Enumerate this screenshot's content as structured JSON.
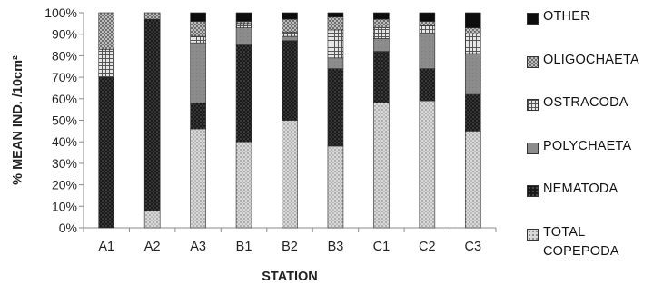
{
  "chart_data": {
    "type": "stacked-bar-100",
    "title": "",
    "xlabel": "STATION",
    "ylabel": "% MEAN IND. /10cm²",
    "ylim": [
      0,
      100
    ],
    "yticks": [
      "0%",
      "10%",
      "20%",
      "30%",
      "40%",
      "50%",
      "60%",
      "70%",
      "80%",
      "90%",
      "100%"
    ],
    "categories": [
      "A1",
      "A2",
      "A3",
      "B1",
      "B2",
      "B3",
      "C1",
      "C2",
      "C3"
    ],
    "series": [
      {
        "name": "TOTAL COPEPODA",
        "values": [
          0,
          8,
          46,
          40,
          50,
          38,
          58,
          59,
          45
        ],
        "pattern": "light-dots"
      },
      {
        "name": "NEMATODA",
        "values": [
          70,
          89,
          12,
          45,
          37,
          36,
          24,
          15,
          17
        ],
        "pattern": "dark-dots"
      },
      {
        "name": "POLYCHAETA",
        "values": [
          0,
          0,
          28,
          8,
          2,
          5,
          6,
          16,
          19
        ],
        "pattern": "gray"
      },
      {
        "name": "OSTRACODA",
        "values": [
          13,
          0,
          3,
          2,
          2,
          13,
          5,
          4,
          9
        ],
        "pattern": "grid"
      },
      {
        "name": "OLIGOCHAETA",
        "values": [
          17,
          3,
          7,
          1,
          6,
          6,
          4,
          2,
          3
        ],
        "pattern": "checker"
      },
      {
        "name": "OTHER",
        "values": [
          0,
          0,
          4,
          4,
          3,
          2,
          3,
          4,
          7
        ],
        "pattern": "black"
      }
    ],
    "legend": {
      "placement": "right",
      "order": [
        "OTHER",
        "OLIGOCHAETA",
        "OSTRACODA",
        "POLYCHAETA",
        "NEMATODA",
        "TOTAL COPEPODA"
      ],
      "labels": [
        {
          "key": "OTHER",
          "lines": [
            "OTHER"
          ]
        },
        {
          "key": "OLIGOCHAETA",
          "lines": [
            "OLIGOCHAETA"
          ]
        },
        {
          "key": "OSTRACODA",
          "lines": [
            "OSTRACODA"
          ]
        },
        {
          "key": "POLYCHAETA",
          "lines": [
            "POLYCHAETA"
          ]
        },
        {
          "key": "NEMATODA",
          "lines": [
            "NEMATODA"
          ]
        },
        {
          "key": "TOTAL COPEPODA",
          "lines": [
            "TOTAL",
            "COPEPODA"
          ]
        }
      ]
    },
    "grid": false
  }
}
